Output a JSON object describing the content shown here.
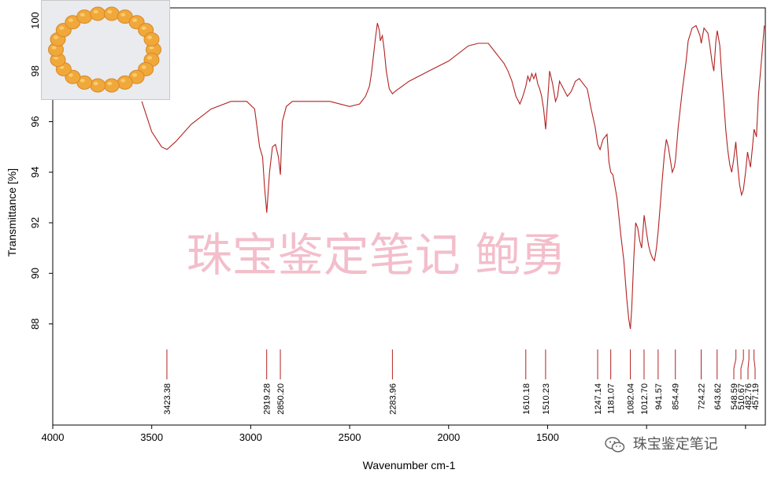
{
  "chart_data": {
    "type": "line",
    "xlabel": "Wavenumber cm-1",
    "ylabel": "Transmittance [%]",
    "xlim": [
      4000,
      400
    ],
    "ylim": [
      84,
      100.5
    ],
    "x_ticks": [
      4000,
      3500,
      3000,
      2500,
      2000,
      1500,
      1000,
      500
    ],
    "x_tick_labels": [
      "4000",
      "3500",
      "3000",
      "2500",
      "2000",
      "1500",
      "",
      ""
    ],
    "y_ticks": [
      88,
      90,
      92,
      94,
      96,
      98,
      100
    ],
    "y_tick_labels": [
      "88",
      "90",
      "92",
      "94",
      "96",
      "98",
      "100"
    ],
    "grid": false,
    "line_color": "#b22222",
    "series": [
      {
        "x": [
          3550,
          3500,
          3450,
          3423,
          3380,
          3300,
          3200,
          3100,
          3020,
          2980,
          2955,
          2940,
          2930,
          2919,
          2905,
          2890,
          2875,
          2860,
          2850,
          2840,
          2820,
          2790,
          2700,
          2600,
          2500,
          2450,
          2420,
          2400,
          2390,
          2380,
          2370,
          2360,
          2350,
          2345,
          2335,
          2325,
          2315,
          2300,
          2284,
          2270,
          2200,
          2100,
          2000,
          1900,
          1850,
          1800,
          1770,
          1740,
          1720,
          1700,
          1680,
          1660,
          1640,
          1625,
          1610,
          1600,
          1590,
          1580,
          1570,
          1560,
          1550,
          1540,
          1530,
          1520,
          1510,
          1500,
          1490,
          1475,
          1460,
          1450,
          1440,
          1420,
          1400,
          1380,
          1360,
          1340,
          1320,
          1300,
          1280,
          1260,
          1247,
          1235,
          1220,
          1200,
          1190,
          1181,
          1170,
          1150,
          1130,
          1115,
          1100,
          1090,
          1082,
          1075,
          1065,
          1055,
          1045,
          1035,
          1025,
          1012,
          1000,
          990,
          980,
          970,
          960,
          950,
          941,
          930,
          920,
          910,
          900,
          890,
          880,
          870,
          860,
          854,
          840,
          820,
          800,
          790,
          770,
          750,
          730,
          724,
          710,
          690,
          680,
          670,
          660,
          650,
          643,
          630,
          620,
          610,
          600,
          590,
          580,
          570,
          560,
          549,
          540,
          530,
          520,
          511,
          500,
          490,
          483,
          475,
          465,
          457,
          445,
          435,
          420,
          405
        ],
        "y": [
          96.8,
          95.6,
          95.0,
          94.9,
          95.2,
          95.9,
          96.5,
          96.8,
          96.8,
          96.5,
          95.0,
          94.6,
          93.4,
          92.4,
          94.0,
          95.0,
          95.1,
          94.6,
          93.9,
          96.0,
          96.6,
          96.8,
          96.8,
          96.8,
          96.6,
          96.7,
          97.0,
          97.4,
          97.9,
          98.6,
          99.3,
          99.9,
          99.6,
          99.2,
          99.4,
          98.8,
          98.0,
          97.3,
          97.1,
          97.2,
          97.6,
          98.0,
          98.4,
          99.0,
          99.1,
          99.1,
          98.8,
          98.5,
          98.3,
          98.0,
          97.6,
          97.0,
          96.7,
          97.0,
          97.4,
          97.8,
          97.6,
          97.9,
          97.7,
          97.9,
          97.5,
          97.3,
          97.0,
          96.5,
          95.7,
          96.8,
          98.0,
          97.5,
          96.8,
          97.0,
          97.6,
          97.3,
          97.0,
          97.2,
          97.6,
          97.7,
          97.5,
          97.3,
          96.5,
          95.8,
          95.1,
          94.9,
          95.3,
          95.5,
          94.4,
          94.0,
          93.9,
          93.0,
          91.5,
          90.5,
          89.0,
          88.2,
          87.8,
          88.6,
          90.5,
          92.0,
          91.8,
          91.3,
          91.0,
          92.3,
          91.6,
          91.1,
          90.8,
          90.6,
          90.5,
          91.0,
          91.7,
          92.8,
          93.8,
          94.7,
          95.3,
          95.0,
          94.5,
          94.0,
          94.2,
          94.5,
          95.8,
          97.2,
          98.4,
          99.2,
          99.7,
          99.8,
          99.4,
          99.1,
          99.7,
          99.5,
          99.0,
          98.4,
          98.0,
          99.2,
          99.6,
          99.0,
          97.8,
          96.8,
          95.7,
          94.9,
          94.3,
          94.0,
          94.5,
          95.2,
          94.3,
          93.5,
          93.1,
          93.3,
          94.0,
          94.8,
          94.5,
          94.2,
          95.0,
          95.7,
          95.4,
          97.0,
          98.4,
          99.8
        ]
      }
    ],
    "peaks": [
      "3423.38",
      "2919.28",
      "2850.20",
      "2283.96",
      "1610.18",
      "1510.23",
      "1247.14",
      "1181.07",
      "1082.04",
      "1012.70",
      "941.57",
      "854.49",
      "724.22",
      "643.62",
      "548.59",
      "510.67",
      "482.76",
      "457.19"
    ],
    "peak_values": [
      3423.38,
      2919.28,
      2850.2,
      2283.96,
      1610.18,
      1510.23,
      1247.14,
      1181.07,
      1082.04,
      1012.7,
      941.57,
      854.49,
      724.22,
      643.62,
      548.59,
      510.67,
      482.76,
      457.19
    ]
  },
  "watermark_text": "珠宝鉴定笔记  鲍勇",
  "brand_text": "珠宝鉴定笔记",
  "thumbnail": {
    "icon": "orange-bead-bracelet-photo",
    "bead_color": "#f0a83a"
  },
  "wechat_icon": "wechat-icon"
}
